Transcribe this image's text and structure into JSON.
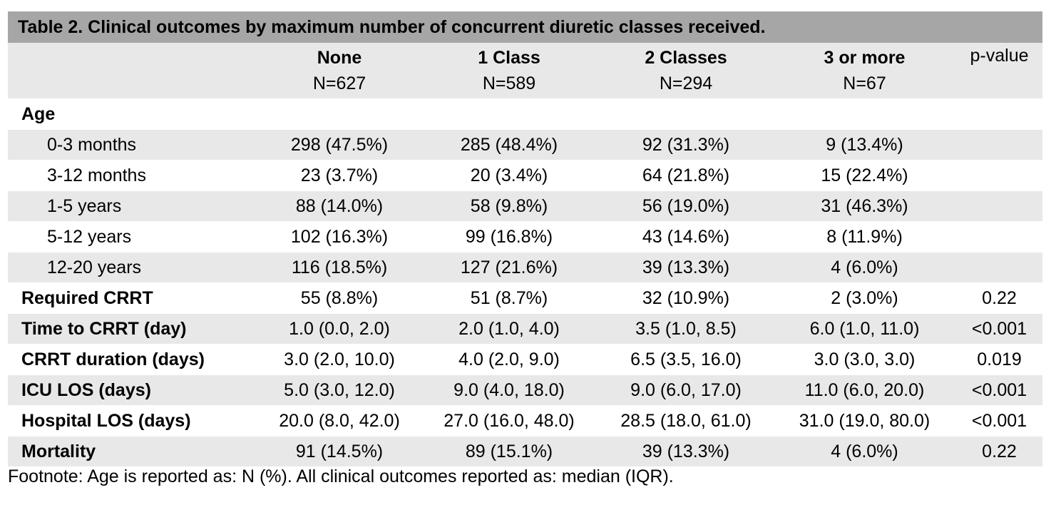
{
  "table": {
    "title": "Table 2. Clinical outcomes by maximum number of concurrent diuretic classes received.",
    "columns": [
      {
        "name": "None",
        "n": "N=627"
      },
      {
        "name": "1 Class",
        "n": "N=589"
      },
      {
        "name": "2 Classes",
        "n": "N=294"
      },
      {
        "name": "3 or more",
        "n": "N=67"
      }
    ],
    "pvalue_header": "p-value",
    "age_section_label": "Age",
    "age_rows": [
      {
        "label": "0-3 months",
        "values": [
          "298 (47.5%)",
          "285 (48.4%)",
          "92 (31.3%)",
          "9 (13.4%)"
        ]
      },
      {
        "label": "3-12 months",
        "values": [
          "23 (3.7%)",
          "20 (3.4%)",
          "64 (21.8%)",
          "15 (22.4%)"
        ]
      },
      {
        "label": "1-5 years",
        "values": [
          "88 (14.0%)",
          "58 (9.8%)",
          "56 (19.0%)",
          "31 (46.3%)"
        ]
      },
      {
        "label": "5-12 years",
        "values": [
          "102 (16.3%)",
          "99 (16.8%)",
          "43 (14.6%)",
          "8 (11.9%)"
        ]
      },
      {
        "label": "12-20 years",
        "values": [
          "116 (18.5%)",
          "127 (21.6%)",
          "39 (13.3%)",
          "4 (6.0%)"
        ]
      }
    ],
    "outcome_rows": [
      {
        "label": "Required CRRT",
        "values": [
          "55 (8.8%)",
          "51 (8.7%)",
          "32 (10.9%)",
          "2 (3.0%)"
        ],
        "p": "0.22"
      },
      {
        "label": "Time to CRRT (day)",
        "values": [
          "1.0 (0.0, 2.0)",
          "2.0 (1.0, 4.0)",
          "3.5 (1.0, 8.5)",
          "6.0 (1.0, 11.0)"
        ],
        "p": "<0.001"
      },
      {
        "label": "CRRT duration (days)",
        "values": [
          "3.0 (2.0, 10.0)",
          "4.0 (2.0, 9.0)",
          "6.5 (3.5, 16.0)",
          "3.0 (3.0, 3.0)"
        ],
        "p": "0.019"
      },
      {
        "label": "ICU LOS (days)",
        "values": [
          "5.0 (3.0, 12.0)",
          "9.0 (4.0, 18.0)",
          "9.0 (6.0, 17.0)",
          "11.0 (6.0, 20.0)"
        ],
        "p": "<0.001"
      },
      {
        "label": "Hospital LOS (days)",
        "values": [
          "20.0 (8.0, 42.0)",
          "27.0 (16.0, 48.0)",
          "28.5 (18.0, 61.0)",
          "31.0 (19.0, 80.0)"
        ],
        "p": "<0.001"
      },
      {
        "label": "Mortality",
        "values": [
          "91 (14.5%)",
          "89 (15.1%)",
          "39 (13.3%)",
          "4 (6.0%)"
        ],
        "p": "0.22"
      }
    ],
    "footnote": "Footnote: Age is reported as: N (%). All clinical outcomes reported as: median (IQR).",
    "colors": {
      "title_band": "#a6a6a6",
      "shaded_row": "#e8e8e8"
    }
  }
}
